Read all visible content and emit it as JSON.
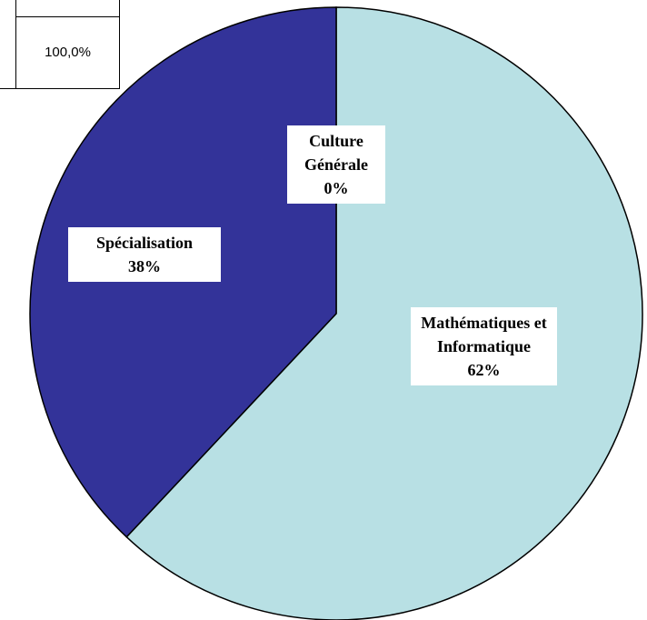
{
  "table": {
    "cells": [
      "100,0%"
    ]
  },
  "chart_data": {
    "type": "pie",
    "categories": [
      "Culture Générale",
      "Mathématiques et Informatique",
      "Spécialisation"
    ],
    "values": [
      0,
      62,
      38
    ],
    "value_labels": [
      "0%",
      "62%",
      "38%"
    ],
    "colors": [
      "#b8e0e4",
      "#b8e0e4",
      "#333399"
    ]
  }
}
